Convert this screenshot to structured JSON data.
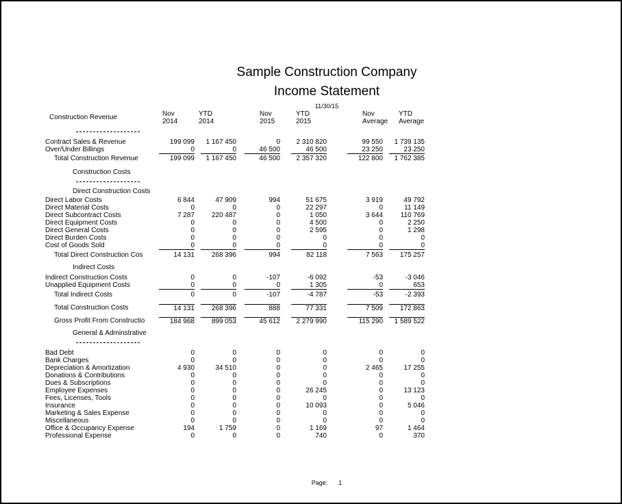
{
  "header": {
    "company": "Sample Construction Company",
    "title": "Income Statement",
    "date": "11/30/15"
  },
  "footer": {
    "page_label": "Page:",
    "page_number": "1"
  },
  "table": {
    "row_label_header": "Construction Revenue",
    "columns": [
      {
        "line1": "Nov",
        "line2": "2014"
      },
      {
        "line1": "YTD",
        "line2": "2014"
      },
      {
        "line1": "Nov",
        "line2": "2015"
      },
      {
        "line1": "YTD",
        "line2": "2015"
      },
      {
        "line1": "Nov",
        "line2": "Average"
      },
      {
        "line1": "YTD",
        "line2": "Average"
      }
    ],
    "rows": [
      {
        "kind": "row",
        "label": "Contract Sales & Revenue",
        "values": [
          "199 099",
          "1 167 450",
          "0",
          "2 310 820",
          "99 550",
          "1 739 135"
        ],
        "space_before": 9
      },
      {
        "kind": "row",
        "label": "Over/Under Billings",
        "values": [
          "0",
          "0",
          "46 500",
          "46 500",
          "23 250",
          "23 250"
        ],
        "underline": true
      },
      {
        "kind": "row",
        "label": "Total Construction Revenue",
        "values": [
          "199 099",
          "1 167 450",
          "46 500",
          "2 357 320",
          "122 800",
          "1 762 385"
        ],
        "indent": true,
        "space_before": 2
      },
      {
        "kind": "heading",
        "label": "Construction Costs",
        "dashed": true,
        "space_before": 9
      },
      {
        "kind": "heading",
        "label": "Direct Construction Costs",
        "space_before": 8
      },
      {
        "kind": "row",
        "label": "Direct Labor Costs",
        "values": [
          "6 844",
          "47 909",
          "994",
          "51 675",
          "3 919",
          "49 792"
        ],
        "space_before": 2
      },
      {
        "kind": "row",
        "label": "Direct Material Costs",
        "values": [
          "0",
          "0",
          "0",
          "22 297",
          "0",
          "11 149"
        ]
      },
      {
        "kind": "row",
        "label": "Direct Subcontract Costs",
        "values": [
          "7 287",
          "220 487",
          "0",
          "1 050",
          "3 644",
          "110 769"
        ]
      },
      {
        "kind": "row",
        "label": "Direct Equipment Costs",
        "values": [
          "0",
          "0",
          "0",
          "4 500",
          "0",
          "2 250"
        ]
      },
      {
        "kind": "row",
        "label": "Direct General Costs",
        "values": [
          "0",
          "0",
          "0",
          "2 595",
          "0",
          "1 298"
        ]
      },
      {
        "kind": "row",
        "label": "Direct Burden Costs",
        "values": [
          "0",
          "0",
          "0",
          "0",
          "0",
          "0"
        ]
      },
      {
        "kind": "row",
        "label": "Cost of Goods Sold",
        "values": [
          "0",
          "0",
          "0",
          "0",
          "0",
          "0"
        ],
        "underline": true
      },
      {
        "kind": "row",
        "label": "Total Direct Construction Cos",
        "values": [
          "14 131",
          "268 396",
          "994",
          "82 118",
          "7 563",
          "175 257"
        ],
        "indent": true,
        "space_before": 3
      },
      {
        "kind": "heading",
        "label": "Indirect Costs",
        "space_before": 7
      },
      {
        "kind": "row",
        "label": "Indirect Construction Costs",
        "values": [
          "0",
          "0",
          "-107",
          "-6 092",
          "-53",
          "-3 046"
        ],
        "space_before": 4
      },
      {
        "kind": "row",
        "label": "Unapplied Equipment Costs",
        "values": [
          "0",
          "0",
          "0",
          "1 305",
          "0",
          "653"
        ],
        "underline": true
      },
      {
        "kind": "row",
        "label": "Total Indirect Costs",
        "values": [
          "0",
          "0",
          "-107",
          "-4 787",
          "-53",
          "-2 393"
        ],
        "indent": true,
        "space_before": 3
      },
      {
        "kind": "row",
        "label": "Total Construction Costs",
        "values": [
          "14 131",
          "268 396",
          "888",
          "77 331",
          "7 509",
          "172 863"
        ],
        "indent": true,
        "overline": true,
        "space_before": 8
      },
      {
        "kind": "row",
        "label": "Gross Profit From Constructio",
        "values": [
          "184 968",
          "899 053",
          "45 612",
          "2 279 990",
          "115 290",
          "1 589 522"
        ],
        "indent": true,
        "overline": true,
        "space_before": 8
      },
      {
        "kind": "heading",
        "label": "General & Adminstrative",
        "dashed": true,
        "space_before": 7
      },
      {
        "kind": "row",
        "label": "Bad Debt",
        "values": [
          "0",
          "0",
          "0",
          "0",
          "0",
          "0"
        ],
        "space_before": 9
      },
      {
        "kind": "row",
        "label": "Bank Charges",
        "values": [
          "0",
          "0",
          "0",
          "0",
          "0",
          "0"
        ]
      },
      {
        "kind": "row",
        "label": "Depreciation & Amortization",
        "values": [
          "4 930",
          "34 510",
          "0",
          "0",
          "2 465",
          "17 255"
        ]
      },
      {
        "kind": "row",
        "label": "Donations & Contributions",
        "values": [
          "0",
          "0",
          "0",
          "0",
          "0",
          "0"
        ]
      },
      {
        "kind": "row",
        "label": "Dues & Subscriptions",
        "values": [
          "0",
          "0",
          "0",
          "0",
          "0",
          "0"
        ]
      },
      {
        "kind": "row",
        "label": "Employee Expenses",
        "values": [
          "0",
          "0",
          "0",
          "26 245",
          "0",
          "13 123"
        ]
      },
      {
        "kind": "row",
        "label": "Fees, Licenses, Tools",
        "values": [
          "0",
          "0",
          "0",
          "0",
          "0",
          "0"
        ]
      },
      {
        "kind": "row",
        "label": "Insurance",
        "values": [
          "0",
          "0",
          "0",
          "10 093",
          "0",
          "5 046"
        ]
      },
      {
        "kind": "row",
        "label": "Marketing & Sales Expense",
        "values": [
          "0",
          "0",
          "0",
          "0",
          "0",
          "0"
        ]
      },
      {
        "kind": "row",
        "label": "Miscellaneous",
        "values": [
          "0",
          "0",
          "0",
          "0",
          "0",
          "0"
        ]
      },
      {
        "kind": "row",
        "label": "Office & Occupancy Expense",
        "values": [
          "194",
          "1 759",
          "0",
          "1 169",
          "97",
          "1 464"
        ]
      },
      {
        "kind": "row",
        "label": "Professional Expense",
        "values": [
          "0",
          "0",
          "0",
          "740",
          "0",
          "370"
        ]
      }
    ]
  }
}
